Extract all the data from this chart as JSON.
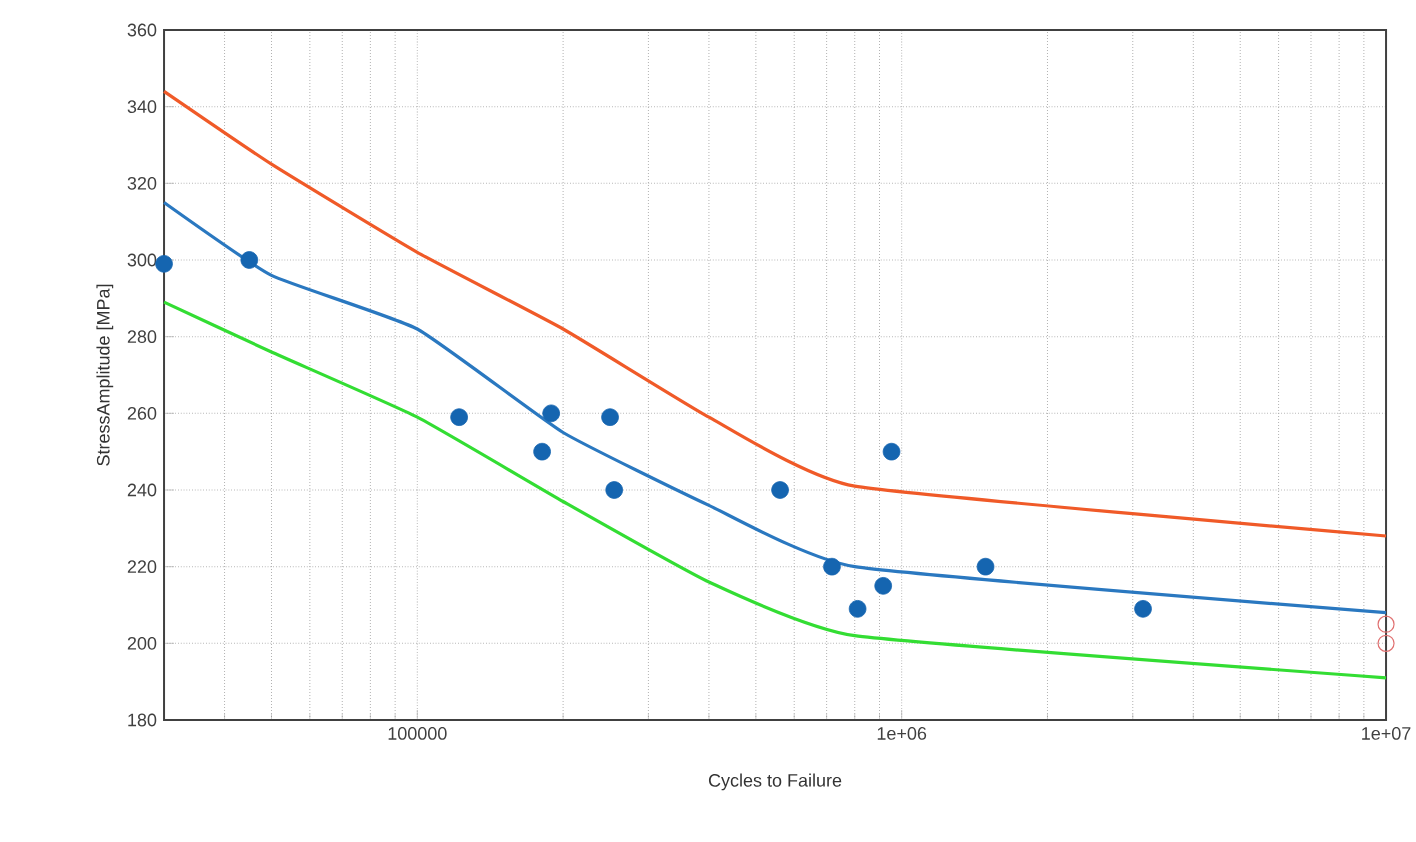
{
  "chart_data": {
    "type": "line",
    "xlabel": "Cycles to Failure",
    "ylabel": "StressAmplitude [MPa]",
    "log": "x",
    "grid": true,
    "xlim": [
      30000,
      10000000
    ],
    "ylim": [
      180,
      360
    ],
    "xticks": [
      100000,
      {
        "value": 1000000,
        "label": "1e+06"
      },
      {
        "value": 10000000,
        "label": "1e+07"
      }
    ],
    "yticks": [
      180,
      200,
      220,
      240,
      260,
      280,
      300,
      320,
      340,
      360
    ],
    "series": [
      {
        "color": "#f05a28",
        "x": [
          30000,
          50000,
          100000,
          200000,
          400000,
          800000,
          10000000
        ],
        "values": [
          344,
          325,
          302,
          282,
          259,
          241,
          228
        ]
      },
      {
        "color": "#2a78c0",
        "x": [
          30000,
          50000,
          100000,
          200000,
          400000,
          800000,
          10000000
        ],
        "values": [
          315,
          296,
          282,
          255,
          236,
          220,
          208
        ]
      },
      {
        "color": "#33dd33",
        "x": [
          30000,
          50000,
          100000,
          200000,
          400000,
          800000,
          10000000
        ],
        "values": [
          289,
          276,
          259,
          237,
          216,
          202,
          191
        ]
      },
      {
        "type": "scatter",
        "marker": "circle",
        "color": "#1565b0",
        "x": [
          30000,
          45000,
          122000,
          181000,
          189000,
          250000,
          255000,
          561000,
          718000,
          811000,
          916000,
          953000,
          1490000,
          3150000
        ],
        "values": [
          299,
          300,
          259,
          250,
          260,
          259,
          240,
          240,
          220,
          209,
          215,
          250,
          220,
          209
        ]
      },
      {
        "type": "scatter",
        "marker": "open circle",
        "color": "#e07070",
        "x": [
          10000000,
          10000000
        ],
        "values": [
          205,
          200
        ]
      }
    ]
  }
}
